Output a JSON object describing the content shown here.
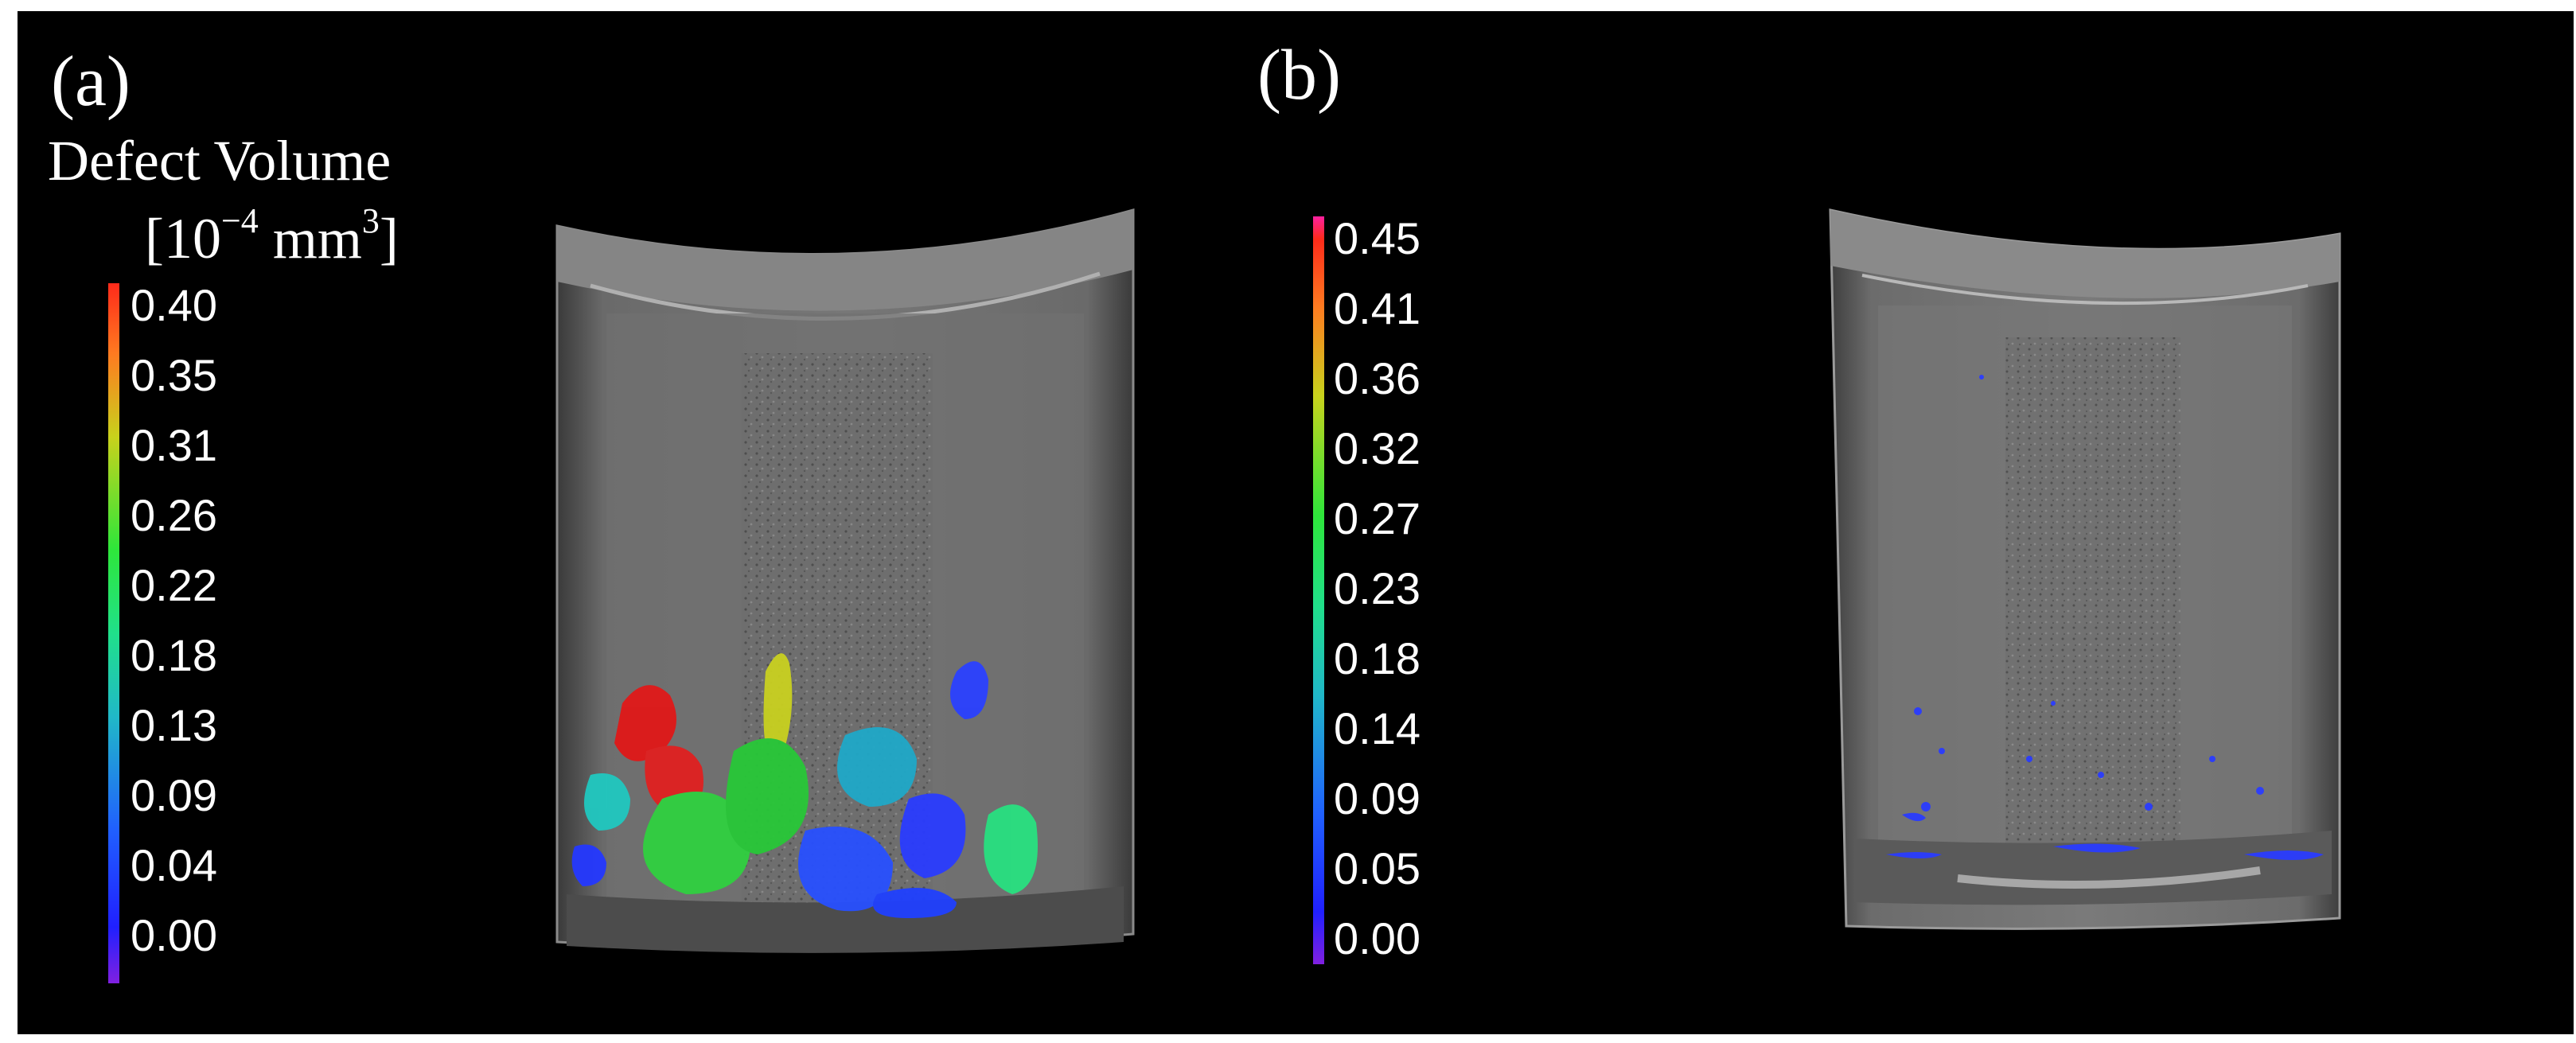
{
  "panels": [
    {
      "label": "(a)",
      "colorbar": {
        "title_line1": "Defect Volume",
        "title_line2_prefix": "[10",
        "title_line2_exp": "−4",
        "title_line2_mid": " mm",
        "title_line2_exp2": "3",
        "title_line2_suffix": "]",
        "ticks": [
          "0.40",
          "0.35",
          "0.31",
          "0.26",
          "0.22",
          "0.18",
          "0.13",
          "0.09",
          "0.04",
          "0.00"
        ],
        "gradient": [
          "#ff2a1a",
          "#ffa020",
          "#c8d21c",
          "#2ee63a",
          "#20e08a",
          "#20b8c8",
          "#2060ff",
          "#2020ff",
          "#8020e0"
        ]
      }
    },
    {
      "label": "(b)",
      "colorbar": {
        "ticks": [
          "0.45",
          "0.41",
          "0.36",
          "0.32",
          "0.27",
          "0.23",
          "0.18",
          "0.14",
          "0.09",
          "0.05",
          "0.00"
        ],
        "gradient": [
          "#ff20a0",
          "#ff2a1a",
          "#ffa020",
          "#c8d21c",
          "#2ee63a",
          "#20e08a",
          "#20b8c8",
          "#2060ff",
          "#2020ff",
          "#8020e0"
        ]
      }
    }
  ]
}
